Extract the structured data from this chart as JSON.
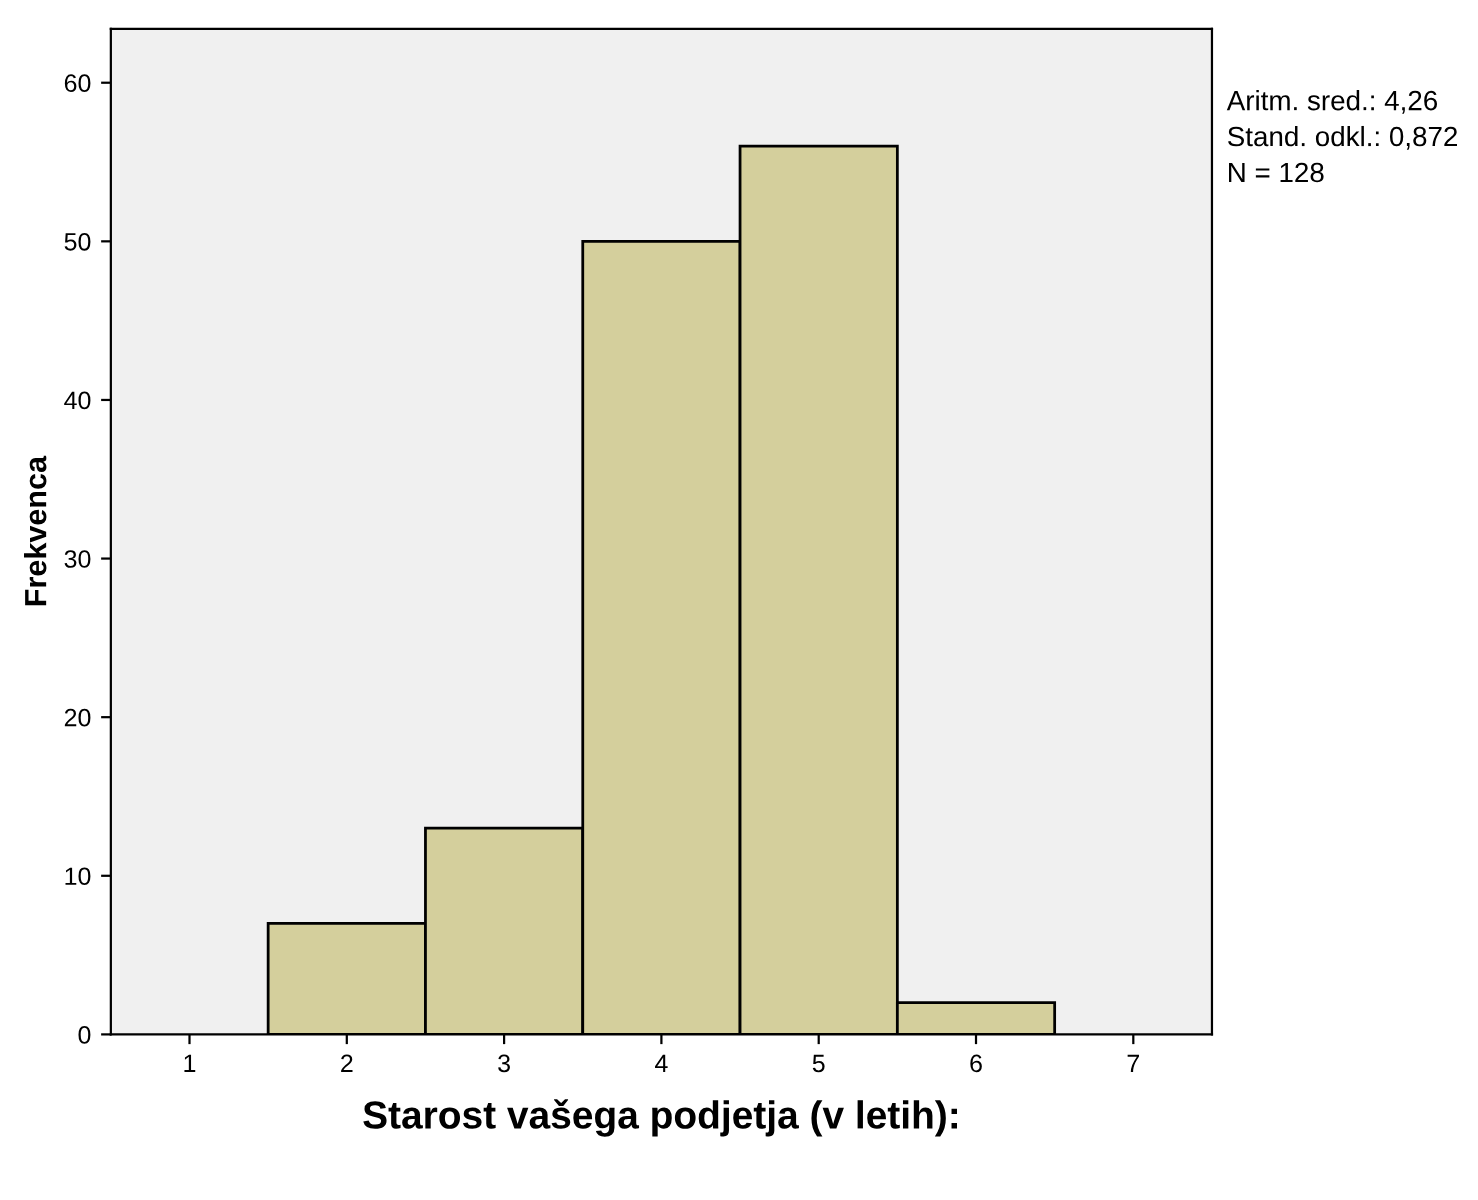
{
  "chart_data": {
    "type": "histogram",
    "xlabel": "Starost vašega podjetja (v letih):",
    "ylabel": "Frekvenca",
    "bins": [
      1.5,
      2.5,
      3.5,
      4.5,
      5.5,
      6.5
    ],
    "values": [
      7,
      13,
      50,
      56,
      2
    ],
    "color": "#d4cf9c",
    "xlim": [
      0.5,
      7.5
    ],
    "ylim": [
      0,
      63.4
    ],
    "xticks": [
      1,
      2,
      3,
      4,
      5,
      6,
      7
    ],
    "yticks": [
      0,
      10,
      20,
      30,
      40,
      50,
      60
    ],
    "grid": false,
    "legend": false,
    "annotations": [
      "Aritm. sred.: 4,26\nStand. odkl.: 0,872\nN = 128"
    ]
  }
}
